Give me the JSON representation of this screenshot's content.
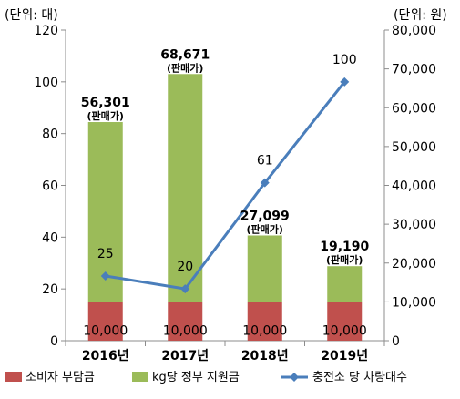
{
  "chart_data": {
    "type": "bar",
    "categories": [
      "2016년",
      "2017년",
      "2018년",
      "2019년"
    ],
    "y_left_label": "(단위: 대)",
    "y_right_label": "(단위: 원)",
    "y_left_ticks": [
      "0",
      "20",
      "40",
      "60",
      "80",
      "100",
      "120"
    ],
    "y_right_ticks": [
      "0",
      "10,000",
      "20,000",
      "30,000",
      "40,000",
      "50,000",
      "60,000",
      "70,000",
      "80,000"
    ],
    "ylim_left": [
      0,
      120
    ],
    "ylim_right": [
      0,
      80000
    ],
    "grid": false,
    "legend_position": "bottom",
    "series": [
      {
        "name": "소비자 부담금",
        "kind": "stacked-bar",
        "axis": "right",
        "color": "#c0504d",
        "values": [
          10000,
          10000,
          10000,
          10000
        ],
        "labels": [
          "10,000",
          "10,000",
          "10,000",
          "10,000"
        ]
      },
      {
        "name": "kg당 정부 지원금",
        "kind": "stacked-bar",
        "axis": "right",
        "color": "#9bbb59",
        "values": [
          46301,
          58671,
          17099,
          9190
        ]
      },
      {
        "name": "충전소 당 차량대수",
        "kind": "line",
        "axis": "left",
        "color": "#4a7ebb",
        "values": [
          25,
          20,
          61,
          100
        ],
        "labels": [
          "25",
          "20",
          "61",
          "100"
        ]
      }
    ],
    "totals": {
      "values": [
        56301,
        68671,
        27099,
        19190
      ],
      "labels": [
        "56,301",
        "68,671",
        "27,099",
        "19,190"
      ],
      "sublabel": "(판매가)"
    }
  }
}
